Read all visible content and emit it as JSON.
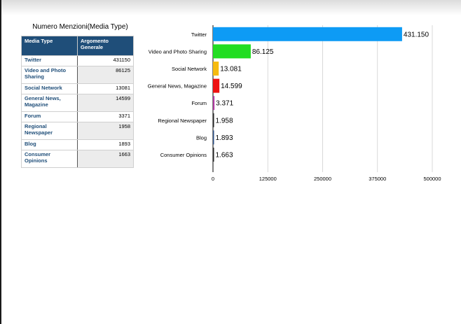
{
  "table": {
    "title": "Numero Menzioni(Media Type)",
    "col1_header": "Media Type",
    "col2_header": "Argomento Generale",
    "rows": [
      {
        "label": "Twitter",
        "value": "431150"
      },
      {
        "label": "Video and Photo Sharing",
        "value": "86125"
      },
      {
        "label": "Social Network",
        "value": "13081"
      },
      {
        "label": "General News, Magazine",
        "value": "14599"
      },
      {
        "label": "Forum",
        "value": "3371"
      },
      {
        "label": "Regional Newspaper",
        "value": "1958"
      },
      {
        "label": "Blog",
        "value": "1893"
      },
      {
        "label": "Consumer Opinions",
        "value": "1663"
      }
    ]
  },
  "chart_data": {
    "type": "bar",
    "orientation": "horizontal",
    "categories": [
      "Twitter",
      "Video and Photo Sharing",
      "Social Network",
      "General News, Magazine",
      "Forum",
      "Regional Newspaper",
      "Blog",
      "Consumer Opinions"
    ],
    "values": [
      431150,
      86125,
      13081,
      14599,
      3371,
      1958,
      1893,
      1663
    ],
    "value_labels": [
      "431.150",
      "86.125",
      "13.081",
      "14.599",
      "3.371",
      "1.958",
      "1.893",
      "1.663"
    ],
    "colors": [
      "#0d9bf5",
      "#22dd22",
      "#f6bb10",
      "#ee1111",
      "#b03aa0",
      "#222222",
      "#2b4f86",
      "#222222"
    ],
    "xlim": [
      0,
      500000
    ],
    "xticks": [
      0,
      125000,
      250000,
      375000,
      500000
    ],
    "xtick_labels": [
      "0",
      "125000",
      "250000",
      "375000",
      "500000"
    ],
    "grid": true,
    "legend": "none"
  }
}
